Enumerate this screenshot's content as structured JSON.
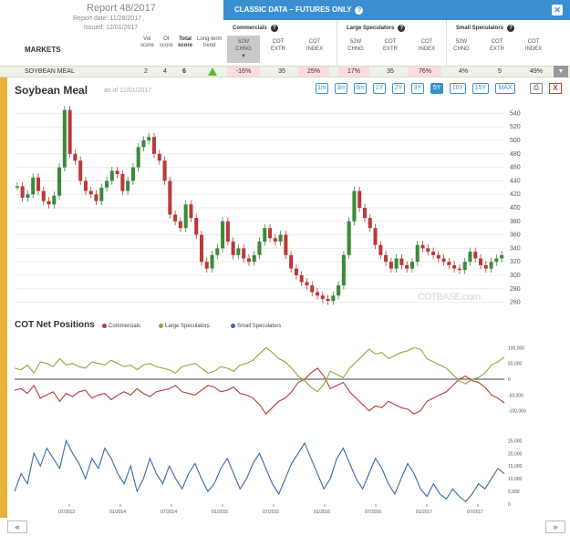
{
  "report": {
    "title": "Report 48/2017",
    "report_date": "Report date: 11/28/2017 ,",
    "issued": "issued: 12/01/2017",
    "markets_label": "MARKETS",
    "cols": {
      "vol": [
        "Vol",
        "score"
      ],
      "oi": [
        "OI",
        "score"
      ],
      "total": [
        "Total",
        "score"
      ],
      "trend": [
        "Long-term",
        "trend"
      ]
    }
  },
  "classic": {
    "title": "CLASSIC DATA – FUTURES ONLY",
    "help": "?",
    "close": "✕",
    "groups": [
      {
        "title": "Commercials",
        "cols": [
          [
            "52W",
            "CHNG"
          ],
          [
            "COT",
            "EXTR"
          ],
          [
            "COT",
            "INDEX"
          ]
        ]
      },
      {
        "title": "Large Speculators",
        "cols": [
          [
            "52W",
            "CHNG"
          ],
          [
            "COT",
            "EXTR"
          ],
          [
            "COT",
            "INDEX"
          ]
        ]
      },
      {
        "title": "Small Speculators",
        "cols": [
          [
            "52W",
            "CHNG"
          ],
          [
            "COT",
            "EXTR"
          ],
          [
            "COT",
            "INDEX"
          ]
        ]
      }
    ]
  },
  "row": {
    "market": "SOYBEAN MEAL",
    "vol": "2",
    "oi": "4",
    "total": "6",
    "trend": "up",
    "comm": [
      "-16%",
      "35",
      "25%"
    ],
    "large": [
      "17%",
      "35",
      "76%"
    ],
    "small": [
      "4%",
      "5",
      "49%"
    ]
  },
  "chart": {
    "title": "Soybean Meal",
    "asof": "as of 12/01/2017",
    "ranges": [
      "1m",
      "3m",
      "6m",
      "1Y",
      "2Y",
      "3Y",
      "5Y",
      "10Y",
      "15Y",
      "MAX"
    ],
    "selected_range": "5Y",
    "print_icon": "printer-icon",
    "close_label": "X",
    "watermark": "COTBASE",
    "watermark_suffix": ".com"
  },
  "cot": {
    "title": "COT Net Positions",
    "legend": [
      {
        "name": "Commercials",
        "color": "#b83a3a"
      },
      {
        "name": "Large Speculators",
        "color": "#8aaa3a"
      },
      {
        "name": "Small Speculators",
        "color": "#3a6aaa"
      }
    ]
  },
  "footer": {
    "prev": "«",
    "next": "»"
  },
  "chart_data": [
    {
      "type": "candlestick",
      "title": "Soybean Meal",
      "ylim": [
        250,
        550
      ],
      "yticks": [
        260,
        280,
        300,
        320,
        340,
        360,
        380,
        400,
        420,
        440,
        460,
        480,
        500,
        520,
        540
      ],
      "x_ticks": [
        "07/2013",
        "01/2014",
        "07/2014",
        "01/2015",
        "07/2015",
        "01/2016",
        "07/2016",
        "01/2017",
        "07/2017"
      ],
      "close_series": [
        432,
        415,
        420,
        445,
        425,
        410,
        405,
        418,
        460,
        545,
        480,
        470,
        440,
        425,
        420,
        410,
        430,
        440,
        455,
        450,
        425,
        440,
        460,
        490,
        500,
        505,
        480,
        470,
        440,
        390,
        380,
        370,
        405,
        385,
        360,
        320,
        310,
        330,
        340,
        380,
        350,
        330,
        340,
        325,
        320,
        330,
        350,
        370,
        355,
        350,
        360,
        330,
        310,
        300,
        290,
        285,
        275,
        270,
        265,
        262,
        270,
        285,
        330,
        380,
        425,
        400,
        385,
        370,
        345,
        330,
        320,
        310,
        325,
        315,
        310,
        320,
        345,
        340,
        335,
        330,
        325,
        320,
        315,
        310,
        308,
        320,
        335,
        325,
        315,
        310,
        320,
        325,
        330
      ]
    },
    {
      "type": "line",
      "title": "COT Net Positions",
      "ylim": [
        -130000,
        130000
      ],
      "yticks": [
        -100000,
        -50000,
        0,
        50000,
        100000
      ],
      "series": [
        {
          "name": "Commercials",
          "values": [
            -35000,
            -30000,
            -45000,
            -20000,
            -60000,
            -50000,
            -40000,
            -70000,
            -45000,
            -55000,
            -40000,
            -35000,
            -60000,
            -50000,
            -45000,
            -65000,
            -50000,
            -40000,
            -50000,
            -30000,
            -45000,
            -55000,
            -40000,
            -35000,
            -30000,
            -20000,
            -40000,
            -45000,
            -50000,
            -35000,
            -20000,
            -25000,
            -40000,
            -35000,
            -25000,
            -45000,
            -50000,
            -60000,
            -80000,
            -110000,
            -90000,
            -70000,
            -60000,
            -40000,
            -10000,
            0,
            20000,
            35000,
            10000,
            -30000,
            -20000,
            -10000,
            -40000,
            -60000,
            -80000,
            -100000,
            -85000,
            -90000,
            -70000,
            -80000,
            -90000,
            -95000,
            -110000,
            -100000,
            -70000,
            -60000,
            -50000,
            -40000,
            -20000,
            0,
            10000,
            -5000,
            -10000,
            -25000,
            -50000,
            -60000,
            -75000
          ]
        },
        {
          "name": "Large Speculators",
          "values": [
            35000,
            30000,
            45000,
            20000,
            55000,
            50000,
            40000,
            65000,
            45000,
            50000,
            40000,
            35000,
            55000,
            50000,
            45000,
            60000,
            50000,
            40000,
            45000,
            30000,
            45000,
            50000,
            40000,
            35000,
            30000,
            20000,
            40000,
            45000,
            50000,
            35000,
            20000,
            25000,
            40000,
            35000,
            25000,
            45000,
            50000,
            60000,
            80000,
            100000,
            85000,
            65000,
            55000,
            35000,
            10000,
            -5000,
            -25000,
            -40000,
            -15000,
            25000,
            15000,
            5000,
            35000,
            55000,
            75000,
            95000,
            80000,
            85000,
            65000,
            75000,
            85000,
            90000,
            100000,
            95000,
            65000,
            55000,
            45000,
            35000,
            15000,
            -5000,
            -15000,
            0,
            5000,
            20000,
            45000,
            55000,
            70000
          ]
        },
        {
          "name": "Small Speculators",
          "values": [
            5000,
            12000,
            8000,
            20000,
            15000,
            22000,
            18000,
            14000,
            25000,
            20000,
            16000,
            10000,
            18000,
            14000,
            22000,
            18000,
            12000,
            8000,
            15000,
            5000,
            10000,
            18000,
            12000,
            8000,
            15000,
            10000,
            6000,
            12000,
            16000,
            10000,
            5000,
            8000,
            14000,
            18000,
            12000,
            6000,
            10000,
            16000,
            20000,
            14000,
            8000,
            4000,
            10000,
            16000,
            20000,
            24000,
            18000,
            12000,
            6000,
            10000,
            18000,
            22000,
            16000,
            10000,
            6000,
            12000,
            18000,
            14000,
            8000,
            4000,
            10000,
            16000,
            12000,
            6000,
            3000,
            8000,
            4000,
            2000,
            6000,
            3000,
            1000,
            4000,
            8000,
            6000,
            10000,
            14000,
            12000
          ]
        }
      ]
    }
  ]
}
